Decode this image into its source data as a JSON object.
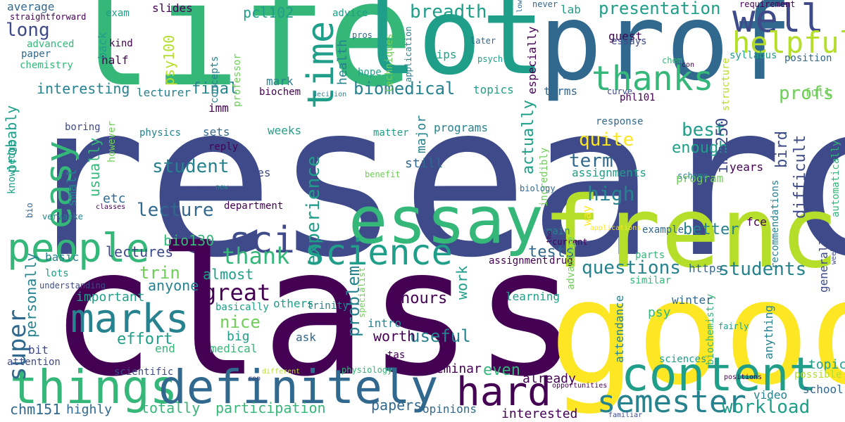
{
  "palette": {
    "purple": "#440154",
    "indigo": "#3e4a89",
    "slate": "#31688e",
    "teal": "#26828e",
    "green": "#1f9e89",
    "mint": "#35b779",
    "lime": "#6ece58",
    "chartreuse": "#b5de2b",
    "yellow": "#fde725"
  },
  "words": [
    {
      "text": "research",
      "color": "indigo"
    },
    {
      "text": "class",
      "color": "purple"
    },
    {
      "text": "good",
      "color": "yellow"
    },
    {
      "text": "life",
      "color": "mint"
    },
    {
      "text": "lot",
      "color": "green"
    },
    {
      "text": "prof",
      "color": "slate"
    },
    {
      "text": "french",
      "color": "chartreuse"
    },
    {
      "text": "essay",
      "color": "mint"
    },
    {
      "text": "things",
      "color": "mint"
    },
    {
      "text": "definitely",
      "color": "slate"
    },
    {
      "text": "content",
      "color": "green"
    },
    {
      "text": "people",
      "color": "mint"
    },
    {
      "text": "marks",
      "color": "teal"
    },
    {
      "text": "sci",
      "color": "indigo"
    },
    {
      "text": "science",
      "color": "green"
    },
    {
      "text": "hard",
      "color": "purple"
    },
    {
      "text": "semester",
      "color": "teal"
    },
    {
      "text": "thanks",
      "color": "mint"
    },
    {
      "text": "well",
      "color": "indigo"
    },
    {
      "text": "easy",
      "color": "mint"
    },
    {
      "text": "time",
      "color": "green"
    },
    {
      "text": "helpful",
      "color": "chartreuse"
    },
    {
      "text": "super",
      "color": "slate"
    },
    {
      "text": "thank",
      "color": "mint"
    },
    {
      "text": "experience",
      "color": "green"
    },
    {
      "text": "great",
      "color": "purple"
    },
    {
      "text": "questions",
      "color": "teal"
    },
    {
      "text": "students",
      "color": "teal"
    },
    {
      "text": "workload",
      "color": "green"
    },
    {
      "text": "biomedical",
      "color": "teal"
    },
    {
      "text": "long",
      "color": "indigo"
    },
    {
      "text": "breadth",
      "color": "green"
    },
    {
      "text": "presentation",
      "color": "green"
    },
    {
      "text": "profs",
      "color": "lime"
    },
    {
      "text": "term",
      "color": "slate"
    },
    {
      "text": "quite",
      "color": "yellow"
    },
    {
      "text": "high",
      "color": "teal"
    },
    {
      "text": "best",
      "color": "green"
    },
    {
      "text": "student",
      "color": "teal"
    },
    {
      "text": "lecture",
      "color": "slate"
    },
    {
      "text": "enough",
      "color": "green"
    },
    {
      "text": "actually",
      "color": "green"
    },
    {
      "text": "imm250",
      "color": "indigo"
    },
    {
      "text": "final",
      "color": "teal"
    },
    {
      "text": "interesting",
      "color": "teal"
    },
    {
      "text": "probably",
      "color": "green"
    },
    {
      "text": "usually",
      "color": "mint"
    },
    {
      "text": "psy100",
      "color": "chartreuse"
    },
    {
      "text": "pcl102",
      "color": "green"
    },
    {
      "text": "trin",
      "color": "lime"
    },
    {
      "text": "problem",
      "color": "teal"
    },
    {
      "text": "personally",
      "color": "teal"
    },
    {
      "text": "effort",
      "color": "green"
    },
    {
      "text": "nice",
      "color": "lime"
    },
    {
      "text": "useful",
      "color": "teal"
    },
    {
      "text": "worth",
      "color": "purple"
    },
    {
      "text": "hours",
      "color": "purple"
    },
    {
      "text": "difficult",
      "color": "indigo"
    },
    {
      "text": "bird",
      "color": "indigo"
    },
    {
      "text": "tests",
      "color": "slate"
    },
    {
      "text": "better",
      "color": "teal"
    },
    {
      "text": "lectures",
      "color": "indigo"
    },
    {
      "text": "anyone",
      "color": "teal"
    },
    {
      "text": "almost",
      "color": "green"
    },
    {
      "text": "important",
      "color": "green"
    },
    {
      "text": "work",
      "color": "green"
    },
    {
      "text": "papers",
      "color": "slate"
    },
    {
      "text": "participation",
      "color": "mint"
    },
    {
      "text": "totally",
      "color": "mint"
    },
    {
      "text": "chm151",
      "color": "slate"
    },
    {
      "text": "highly",
      "color": "slate"
    },
    {
      "text": "seminar",
      "color": "purple"
    },
    {
      "text": "even",
      "color": "mint"
    },
    {
      "text": "interested",
      "color": "purple"
    },
    {
      "text": "already",
      "color": "purple"
    },
    {
      "text": "video",
      "color": "teal"
    },
    {
      "text": "school",
      "color": "slate"
    },
    {
      "text": "topic",
      "color": "green"
    },
    {
      "text": "possible",
      "color": "chartreuse"
    },
    {
      "text": "sciences",
      "color": "green"
    },
    {
      "text": "psy",
      "color": "mint"
    },
    {
      "text": "attendance",
      "color": "teal"
    },
    {
      "text": "biochemistry",
      "color": "mint"
    },
    {
      "text": "anything",
      "color": "teal"
    },
    {
      "text": "winter",
      "color": "slate"
    },
    {
      "text": "similar",
      "color": "mint"
    },
    {
      "text": "learning",
      "color": "green"
    },
    {
      "text": "assignment",
      "color": "purple"
    },
    {
      "text": "https",
      "color": "slate"
    },
    {
      "text": "generally",
      "color": "indigo"
    },
    {
      "text": "recommendations",
      "color": "teal"
    },
    {
      "text": "automatically",
      "color": "mint"
    },
    {
      "text": "fce",
      "color": "purple"
    },
    {
      "text": "program",
      "color": "lime"
    },
    {
      "text": "years",
      "color": "purple"
    },
    {
      "text": "assignments",
      "color": "green"
    },
    {
      "text": "response",
      "color": "slate"
    },
    {
      "text": "phl101",
      "color": "purple"
    },
    {
      "text": "terms",
      "color": "slate"
    },
    {
      "text": "guest",
      "color": "purple"
    },
    {
      "text": "position",
      "color": "slate"
    },
    {
      "text": "syllabus",
      "color": "green"
    },
    {
      "text": "full",
      "color": "lime"
    },
    {
      "text": "structure",
      "color": "chartreuse"
    },
    {
      "text": "essays",
      "color": "indigo"
    },
    {
      "text": "especially",
      "color": "purple"
    },
    {
      "text": "lab",
      "color": "green"
    },
    {
      "text": "never",
      "color": "slate"
    },
    {
      "text": "advice",
      "color": "green"
    },
    {
      "text": "slides",
      "color": "purple"
    },
    {
      "text": "exam",
      "color": "green"
    },
    {
      "text": "average",
      "color": "slate"
    },
    {
      "text": "advanced",
      "color": "mint"
    },
    {
      "text": "paper",
      "color": "slate"
    },
    {
      "text": "chemistry",
      "color": "mint"
    },
    {
      "text": "kind",
      "color": "purple"
    },
    {
      "text": "half",
      "color": "purple"
    },
    {
      "text": "back",
      "color": "green"
    },
    {
      "text": "health",
      "color": "teal"
    },
    {
      "text": "concepts",
      "color": "teal"
    },
    {
      "text": "professor",
      "color": "lime"
    },
    {
      "text": "mark",
      "color": "teal"
    },
    {
      "text": "lecturer",
      "color": "teal"
    },
    {
      "text": "techniques",
      "color": "lime"
    },
    {
      "text": "application",
      "color": "teal"
    },
    {
      "text": "hope",
      "color": "green"
    },
    {
      "text": "tips",
      "color": "green"
    },
    {
      "text": "topics",
      "color": "green"
    },
    {
      "text": "biochem",
      "color": "purple"
    },
    {
      "text": "decision",
      "color": "teal"
    },
    {
      "text": "incredibly",
      "color": "lime"
    },
    {
      "text": "major",
      "color": "teal"
    },
    {
      "text": "programs",
      "color": "teal"
    },
    {
      "text": "still",
      "color": "slate"
    },
    {
      "text": "benefit",
      "color": "lime"
    },
    {
      "text": "matter",
      "color": "green"
    },
    {
      "text": "ones",
      "color": "indigo"
    },
    {
      "text": "weeks",
      "color": "green"
    },
    {
      "text": "sets",
      "color": "slate"
    },
    {
      "text": "reply",
      "color": "purple"
    },
    {
      "text": "imm",
      "color": "purple"
    },
    {
      "text": "physics",
      "color": "teal"
    },
    {
      "text": "however",
      "color": "lime"
    },
    {
      "text": "boring",
      "color": "indigo"
    },
    {
      "text": "etc",
      "color": "slate"
    },
    {
      "text": "small",
      "color": "teal"
    },
    {
      "text": "knowledge",
      "color": "green"
    },
    {
      "text": "bio",
      "color": "slate"
    },
    {
      "text": "vervaeke",
      "color": "teal"
    },
    {
      "text": "classes",
      "color": "purple"
    },
    {
      "text": "new",
      "color": "teal"
    },
    {
      "text": "department",
      "color": "purple"
    },
    {
      "text": "bio130",
      "color": "mint"
    },
    {
      "text": "basic",
      "color": "teal"
    },
    {
      "text": "lots",
      "color": "green"
    },
    {
      "text": "understanding",
      "color": "indigo"
    },
    {
      "text": "basically",
      "color": "green"
    },
    {
      "text": "others",
      "color": "green"
    },
    {
      "text": "big",
      "color": "green"
    },
    {
      "text": "medical",
      "color": "mint"
    },
    {
      "text": "trinity",
      "color": "teal"
    },
    {
      "text": "specialist",
      "color": "lime"
    },
    {
      "text": "intro",
      "color": "teal"
    },
    {
      "text": "tas",
      "color": "purple"
    },
    {
      "text": "ask",
      "color": "slate"
    },
    {
      "text": "end",
      "color": "mint"
    },
    {
      "text": "bit",
      "color": "indigo"
    },
    {
      "text": "attention",
      "color": "indigo"
    },
    {
      "text": "scientific",
      "color": "indigo"
    },
    {
      "text": "rop",
      "color": "indigo"
    },
    {
      "text": "different",
      "color": "chartreuse"
    },
    {
      "text": "physiology",
      "color": "mint"
    },
    {
      "text": "opportunities",
      "color": "purple"
    },
    {
      "text": "opinions",
      "color": "slate"
    },
    {
      "text": "familiar",
      "color": "indigo"
    },
    {
      "text": "positions",
      "color": "purple"
    },
    {
      "text": "fairly",
      "color": "green"
    },
    {
      "text": "weekly",
      "color": "indigo"
    },
    {
      "text": "parts",
      "color": "mint"
    },
    {
      "text": "current",
      "color": "purple"
    },
    {
      "text": "drug",
      "color": "purple"
    },
    {
      "text": "example",
      "color": "slate"
    },
    {
      "text": "main",
      "color": "teal"
    },
    {
      "text": "tho",
      "color": "purple"
    },
    {
      "text": "advantage",
      "color": "lime"
    },
    {
      "text": "way",
      "color": "yellow"
    },
    {
      "text": "applications",
      "color": "yellow"
    },
    {
      "text": "biology",
      "color": "slate"
    },
    {
      "text": "scheme",
      "color": "teal"
    },
    {
      "text": "cons",
      "color": "slate"
    },
    {
      "text": "chem",
      "color": "mint"
    },
    {
      "text": "con",
      "color": "purple"
    },
    {
      "text": "curve",
      "color": "indigo"
    },
    {
      "text": "psych",
      "color": "green"
    },
    {
      "text": "later",
      "color": "slate"
    },
    {
      "text": "low",
      "color": "slate"
    },
    {
      "text": "pros",
      "color": "slate"
    },
    {
      "text": "requirement",
      "color": "purple"
    },
    {
      "text": "straightforward",
      "color": "purple"
    }
  ]
}
